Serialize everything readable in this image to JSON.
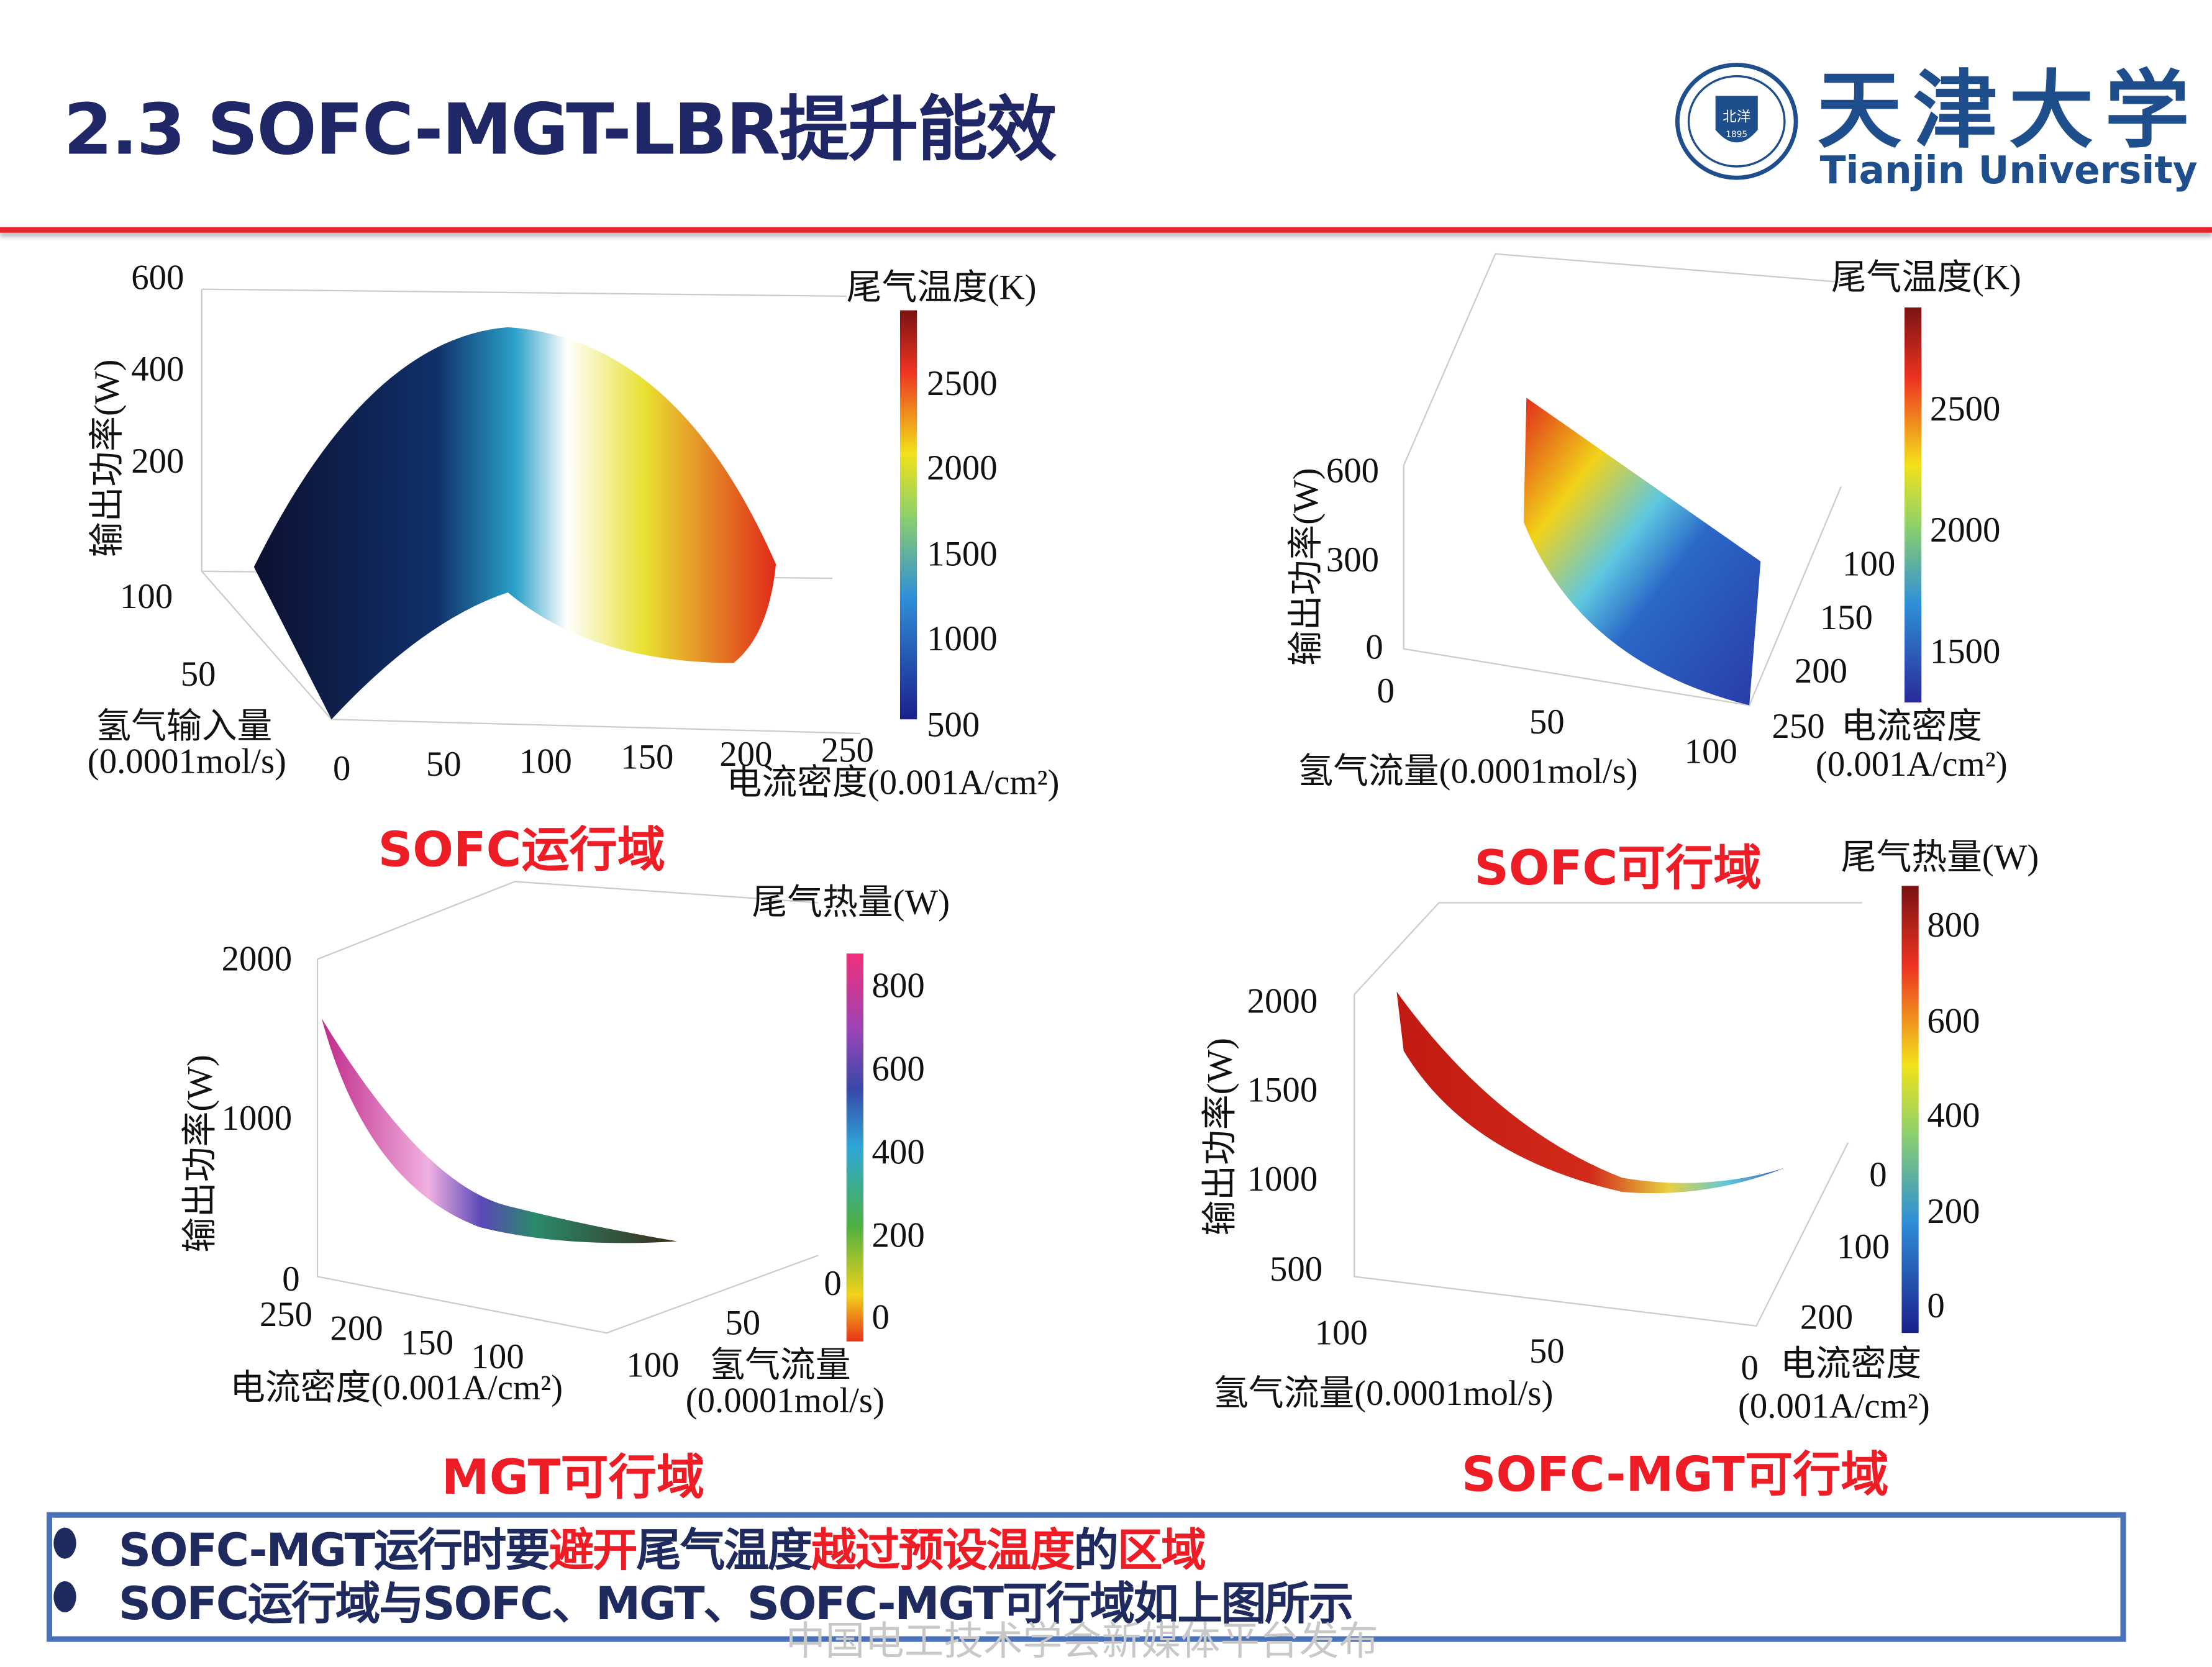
{
  "header": {
    "title": "2.3 SOFC-MGT-LBR提升能效",
    "logo": {
      "name_cn": "天津大学",
      "name_en": "Tianjin University",
      "seal_text": "TIANJIN UNIVERSITY (PEIYANG UNIVERSITY) 北洋 1895 天津大学"
    },
    "accent_color": "#e3262b",
    "title_color": "#1f2766"
  },
  "chart_data": [
    {
      "type": "3d-surface",
      "caption": "SOFC运行域",
      "zlabel": "输出功率(W)",
      "zticks": [
        "600",
        "400",
        "200"
      ],
      "ylabel_line1": "氢气输入量",
      "ylabel_line2": "(0.0001mol/s)",
      "yticks": [
        "100",
        "50"
      ],
      "xlabel": "电流密度(0.001A/cm²)",
      "xticks": [
        "0",
        "50",
        "100",
        "150",
        "200",
        "250"
      ],
      "colorbar": {
        "title": "尾气温度(K)",
        "ticks": [
          "2500",
          "2000",
          "1500",
          "1000",
          "500"
        ],
        "colormap": "jet"
      }
    },
    {
      "type": "3d-surface",
      "caption": "SOFC可行域",
      "zlabel": "输出功率(W)",
      "zticks": [
        "600",
        "300",
        "0"
      ],
      "xlabel": "氢气流量(0.0001mol/s)",
      "xticks": [
        "0",
        "50",
        "100"
      ],
      "ylabel_line1": "电流密度",
      "ylabel_line2": "(0.001A/cm²)",
      "yticks": [
        "100",
        "150",
        "200",
        "250"
      ],
      "colorbar": {
        "title": "尾气温度(K)",
        "ticks": [
          "2500",
          "2000",
          "1500"
        ],
        "colormap": "jet"
      }
    },
    {
      "type": "3d-surface",
      "caption": "MGT可行域",
      "zlabel": "输出功率(W)",
      "zticks": [
        "2000",
        "1000",
        "0"
      ],
      "xlabel": "电流密度(0.001A/cm²)",
      "xticks": [
        "250",
        "200",
        "150",
        "100"
      ],
      "ylabel_line1": "氢气流量",
      "ylabel_line2": "(0.0001mol/s)",
      "yticks": [
        "0",
        "50",
        "100"
      ],
      "colorbar": {
        "title": "尾气热量(W)",
        "ticks": [
          "800",
          "600",
          "400",
          "200",
          "0"
        ],
        "colormap": "custom"
      }
    },
    {
      "type": "3d-surface",
      "caption": "SOFC-MGT可行域",
      "zlabel": "输出功率(W)",
      "zticks": [
        "2000",
        "1500",
        "1000",
        "500"
      ],
      "xlabel": "氢气流量(0.0001mol/s)",
      "xticks": [
        "100",
        "50",
        "0"
      ],
      "ylabel_line1": "电流密度",
      "ylabel_line2": "(0.001A/cm²)",
      "yticks": [
        "0",
        "100",
        "200"
      ],
      "colorbar": {
        "title": "尾气热量(W)",
        "ticks": [
          "800",
          "600",
          "400",
          "200",
          "0"
        ],
        "colormap": "jet"
      }
    }
  ],
  "summary": {
    "bullet1": {
      "p1": "SOFC-MGT运行时要",
      "p2": "避开",
      "p3": "尾气温度",
      "p4": "越过预设温度",
      "p5": "的",
      "p6": "区域"
    },
    "bullet2": "SOFC运行域与SOFC、MGT、SOFC-MGT可行域如上图所示",
    "border_color": "#4a72b8"
  },
  "watermark": "中国电工技术学会新媒体平台发布"
}
